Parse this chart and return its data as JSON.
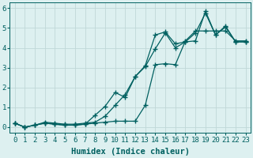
{
  "xlabel": "Humidex (Indice chaleur)",
  "xlim": [
    -0.5,
    23.5
  ],
  "ylim": [
    -0.3,
    6.3
  ],
  "bg_color": "#ddf0f0",
  "grid_color": "#c0d8d8",
  "line_color": "#006060",
  "line1_x": [
    0,
    1,
    2,
    3,
    4,
    5,
    6,
    7,
    8,
    9,
    10,
    11,
    12,
    13,
    14,
    15,
    16,
    17,
    18,
    19,
    20,
    21,
    22,
    23
  ],
  "line1_y": [
    0.2,
    0.0,
    0.1,
    0.2,
    0.15,
    0.1,
    0.1,
    0.15,
    0.2,
    0.25,
    0.3,
    0.3,
    0.3,
    1.1,
    3.15,
    3.2,
    3.15,
    4.35,
    4.85,
    4.85,
    4.85,
    4.85,
    4.35,
    4.35
  ],
  "line2_x": [
    0,
    1,
    2,
    3,
    4,
    5,
    6,
    7,
    8,
    9,
    10,
    11,
    12,
    13,
    14,
    15,
    16,
    17,
    18,
    19,
    20,
    21,
    22,
    23
  ],
  "line2_y": [
    0.2,
    0.0,
    0.1,
    0.2,
    0.15,
    0.1,
    0.1,
    0.15,
    0.6,
    1.05,
    1.75,
    1.5,
    2.55,
    3.1,
    4.65,
    4.8,
    4.2,
    4.3,
    4.35,
    5.85,
    4.65,
    5.1,
    4.3,
    4.3
  ],
  "line3_x": [
    0,
    1,
    2,
    3,
    4,
    5,
    6,
    7,
    8,
    9,
    10,
    11,
    12,
    13,
    14,
    15,
    16,
    17,
    18,
    19,
    20,
    21,
    22,
    23
  ],
  "line3_y": [
    0.2,
    0.0,
    0.1,
    0.25,
    0.2,
    0.15,
    0.15,
    0.2,
    0.25,
    0.55,
    1.1,
    1.65,
    2.55,
    3.05,
    3.95,
    4.75,
    4.0,
    4.3,
    4.75,
    5.75,
    4.65,
    5.05,
    4.3,
    4.3
  ],
  "marker": "+",
  "markersize": 4,
  "linewidth": 0.9,
  "xtick_labels": [
    "0",
    "1",
    "2",
    "3",
    "4",
    "5",
    "6",
    "7",
    "8",
    "9",
    "10",
    "11",
    "12",
    "13",
    "14",
    "15",
    "16",
    "17",
    "18",
    "19",
    "20",
    "21",
    "22",
    "23"
  ],
  "ytick_vals": [
    0,
    1,
    2,
    3,
    4,
    5,
    6
  ],
  "tick_color": "#006060",
  "label_color": "#006060",
  "xlabel_fontsize": 7.5,
  "tick_fontsize": 6.5
}
